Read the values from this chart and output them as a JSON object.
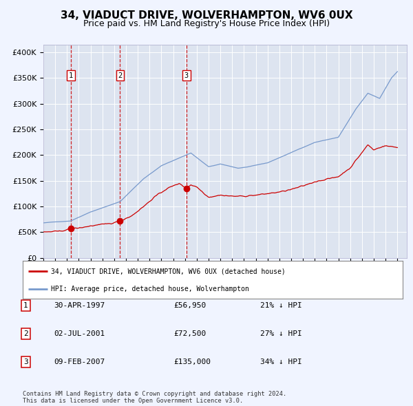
{
  "title": "34, VIADUCT DRIVE, WOLVERHAMPTON, WV6 0UX",
  "subtitle": "Price paid vs. HM Land Registry's House Price Index (HPI)",
  "ylabel_ticks": [
    "£0",
    "£50K",
    "£100K",
    "£150K",
    "£200K",
    "£250K",
    "£300K",
    "£350K",
    "£400K"
  ],
  "ytick_values": [
    0,
    50000,
    100000,
    150000,
    200000,
    250000,
    300000,
    350000,
    400000
  ],
  "ylim": [
    0,
    415000
  ],
  "xlim_start": 1995.0,
  "xlim_end": 2025.8,
  "sale_prices": [
    56950,
    72500,
    135000
  ],
  "sale_labels": [
    "1",
    "2",
    "3"
  ],
  "legend_red": "34, VIADUCT DRIVE, WOLVERHAMPTON, WV6 0UX (detached house)",
  "legend_blue": "HPI: Average price, detached house, Wolverhampton",
  "table_rows": [
    [
      "1",
      "30-APR-1997",
      "£56,950",
      "21% ↓ HPI"
    ],
    [
      "2",
      "02-JUL-2001",
      "£72,500",
      "27% ↓ HPI"
    ],
    [
      "3",
      "09-FEB-2007",
      "£135,000",
      "34% ↓ HPI"
    ]
  ],
  "footnote": "Contains HM Land Registry data © Crown copyright and database right 2024.\nThis data is licensed under the Open Government Licence v3.0.",
  "bg_color": "#f0f4ff",
  "plot_bg_color": "#dde4f0",
  "grid_color": "#ffffff",
  "red_line_color": "#cc0000",
  "blue_line_color": "#7799cc",
  "vline_color": "#cc0000",
  "sale_marker_color": "#cc0000",
  "box_border_color": "#cc0000",
  "hpi_anchors_years": [
    1995.0,
    1997.3,
    1999.0,
    2001.5,
    2003.5,
    2005.0,
    2007.5,
    2009.0,
    2010.0,
    2011.5,
    2012.5,
    2014.0,
    2016.0,
    2018.0,
    2020.0,
    2021.5,
    2022.5,
    2023.5,
    2024.5,
    2025.3
  ],
  "hpi_anchors_vals": [
    68000,
    72000,
    90000,
    110000,
    155000,
    180000,
    205000,
    178000,
    183000,
    175000,
    178000,
    185000,
    205000,
    225000,
    235000,
    290000,
    320000,
    310000,
    350000,
    370000
  ],
  "red_anchors_years": [
    1995.0,
    1996.5,
    1997.33,
    1998.0,
    1999.0,
    2000.0,
    2001.0,
    2001.58,
    2002.5,
    2003.5,
    2004.5,
    2005.5,
    2006.5,
    2007.12,
    2007.5,
    2008.0,
    2009.0,
    2010.0,
    2011.0,
    2012.0,
    2013.0,
    2014.0,
    2015.0,
    2016.0,
    2017.0,
    2018.0,
    2019.0,
    2020.0,
    2021.0,
    2022.0,
    2022.5,
    2023.0,
    2023.5,
    2024.0,
    2025.0,
    2025.3
  ],
  "red_anchors_vals": [
    50000,
    52000,
    56950,
    58000,
    62000,
    65000,
    68000,
    72500,
    82000,
    100000,
    120000,
    135000,
    145000,
    135000,
    142000,
    138000,
    118000,
    122000,
    120000,
    120000,
    122000,
    125000,
    128000,
    133000,
    140000,
    148000,
    153000,
    158000,
    175000,
    205000,
    220000,
    210000,
    215000,
    218000,
    215000,
    220000
  ],
  "sale_year_vals": [
    1997.33,
    2001.5,
    2007.12
  ]
}
